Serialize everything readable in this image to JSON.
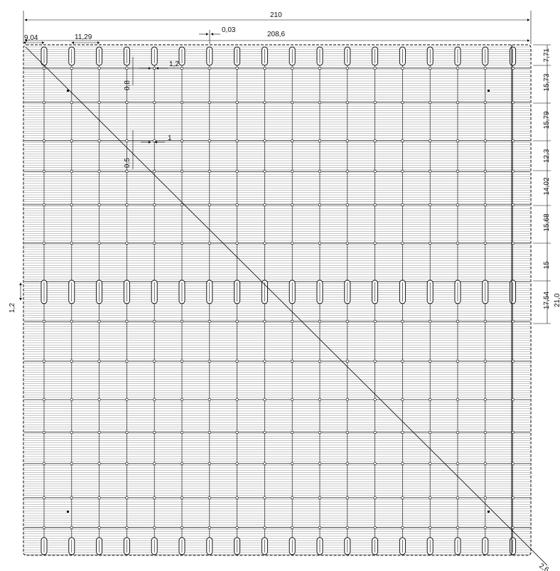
{
  "dimensions": {
    "total_width": "210",
    "inner_width": "208,6",
    "left_offset": "9,04",
    "pitch": "11,29",
    "gap": "0,03",
    "slot_width": "1,2",
    "feature_height_a": "0,8",
    "feature_width": "1",
    "feature_height_b": "0,5",
    "left_height": "1,2",
    "corner": "2,6",
    "side_partial": "21,0"
  },
  "right_dimensions": [
    "7,71",
    "15,73",
    "15,79",
    "12,3",
    "14,02",
    "15,68",
    "15",
    "17,54"
  ],
  "colors": {
    "line": "#000000",
    "hatch": "#8a8a8a",
    "background": "#ffffff"
  }
}
